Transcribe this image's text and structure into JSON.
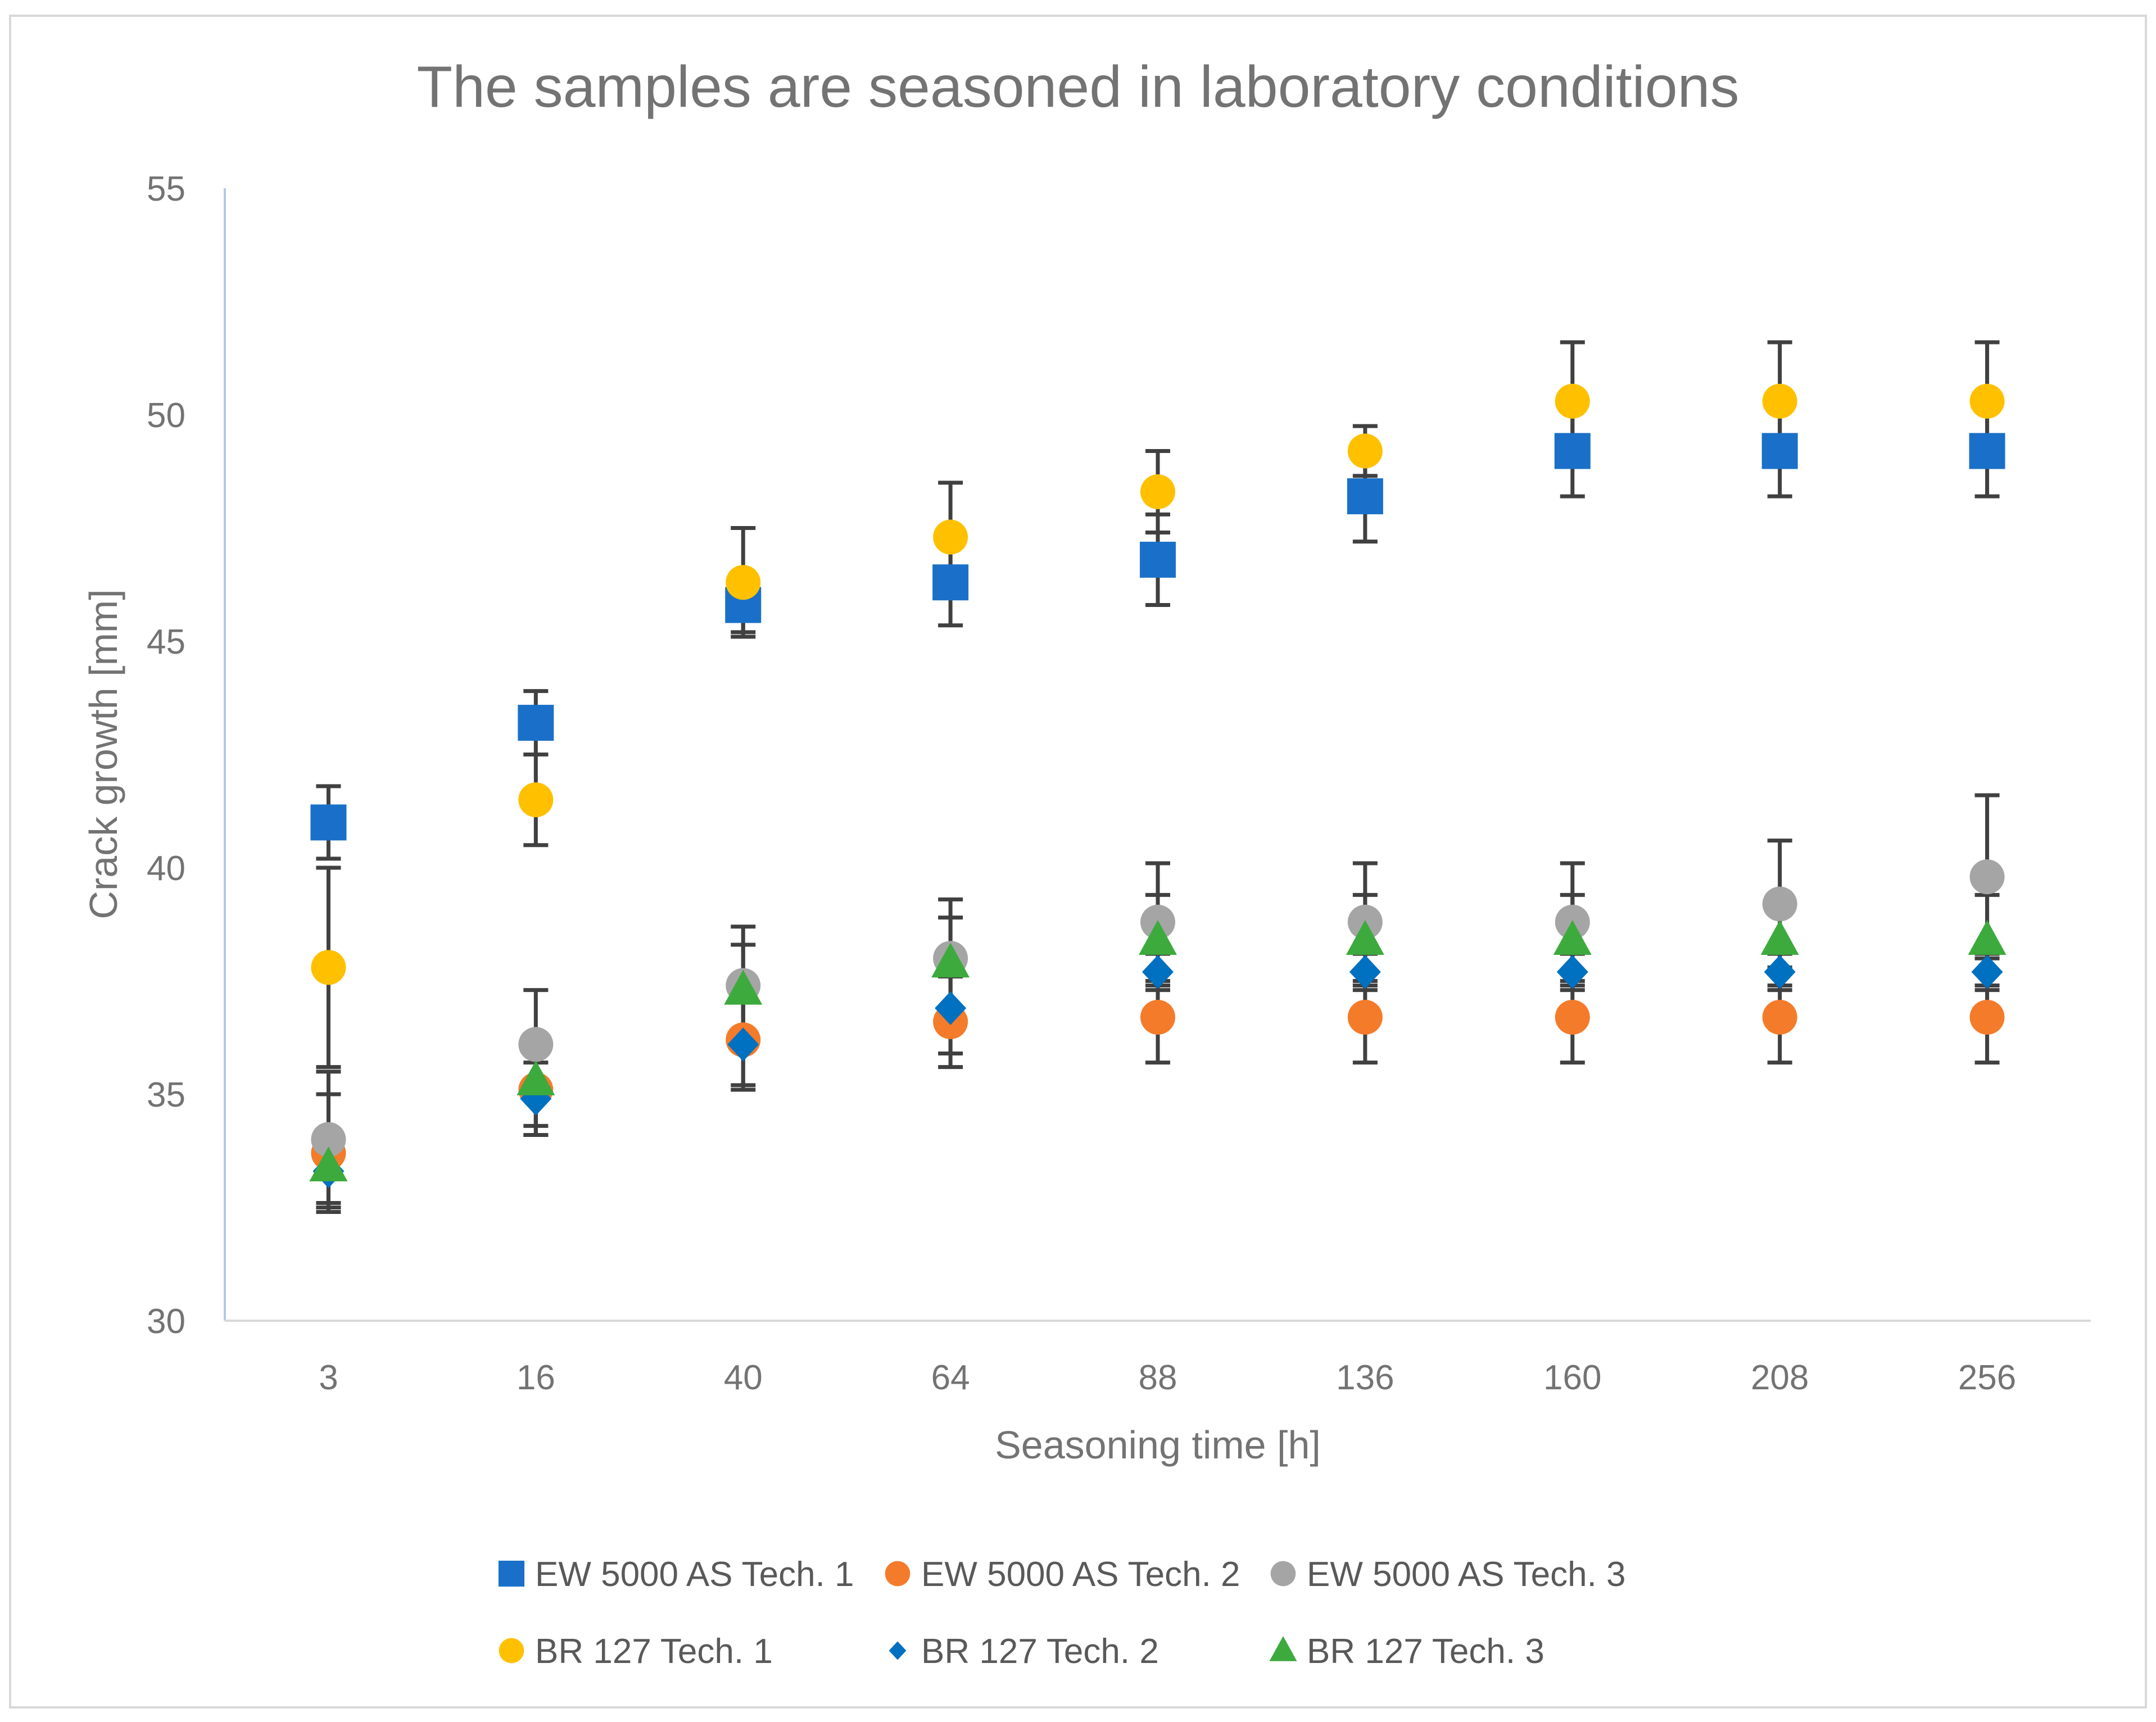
{
  "chart_data": {
    "type": "scatter",
    "title": "The samples are seasoned in laboratory conditions",
    "xlabel": "Seasoning time [h]",
    "ylabel": "Crack growth [mm]",
    "categories": [
      "3",
      "16",
      "40",
      "64",
      "88",
      "136",
      "160",
      "208",
      "256"
    ],
    "ylim": [
      30,
      55
    ],
    "yticks": [
      "30",
      "35",
      "40",
      "45",
      "50",
      "55"
    ],
    "grid": false,
    "legend_position": "bottom",
    "series": [
      {
        "name": "EW 5000 AS Tech. 1",
        "marker": "square",
        "color": "#1A70C8",
        "values": [
          41.0,
          43.2,
          45.8,
          46.3,
          46.8,
          48.2,
          49.2,
          49.2,
          49.2
        ],
        "errors": [
          0.8,
          0.7,
          0.6,
          0.95,
          1.0,
          1.0,
          1.0,
          1.0,
          1.0
        ]
      },
      {
        "name": "EW 5000 AS Tech. 2",
        "marker": "circle",
        "color": "#F47B2A",
        "values": [
          33.7,
          35.1,
          36.2,
          36.6,
          36.7,
          36.7,
          36.7,
          36.7,
          36.7
        ],
        "errors": [
          1.3,
          1.0,
          1.0,
          1.0,
          1.0,
          1.0,
          1.0,
          1.0,
          1.0
        ]
      },
      {
        "name": "EW 5000 AS Tech. 3",
        "marker": "circle",
        "color": "#A5A5A5",
        "values": [
          34.0,
          36.1,
          37.4,
          38.0,
          38.8,
          38.8,
          38.8,
          39.2,
          39.8
        ],
        "errors": [
          1.5,
          1.2,
          1.3,
          1.3,
          1.3,
          1.3,
          1.3,
          1.4,
          1.8
        ]
      },
      {
        "name": "BR 127 Tech. 1",
        "marker": "circle",
        "color": "#FFC000",
        "values": [
          37.8,
          41.5,
          46.3,
          47.3,
          48.3,
          49.2,
          50.3,
          50.3,
          50.3
        ],
        "errors": [
          2.2,
          1.0,
          1.2,
          1.2,
          0.9,
          0.55,
          1.3,
          1.3,
          1.3
        ]
      },
      {
        "name": "BR 127 Tech. 2",
        "marker": "diamond",
        "color": "#0070C0",
        "values": [
          33.3,
          34.9,
          36.1,
          36.9,
          37.7,
          37.7,
          37.7,
          37.7,
          37.7
        ],
        "errors": [
          0.8,
          0.8,
          1.0,
          1.0,
          0.4,
          0.4,
          0.4,
          0.4,
          0.4
        ]
      },
      {
        "name": "BR 127 Tech. 3",
        "marker": "triangle",
        "color": "#3DAA3D",
        "values": [
          33.4,
          35.3,
          37.3,
          37.9,
          38.4,
          38.4,
          38.4,
          38.4,
          38.4
        ],
        "errors": [
          0.8,
          1.0,
          1.0,
          1.0,
          1.0,
          1.0,
          1.0,
          1.0,
          1.0
        ]
      }
    ]
  }
}
